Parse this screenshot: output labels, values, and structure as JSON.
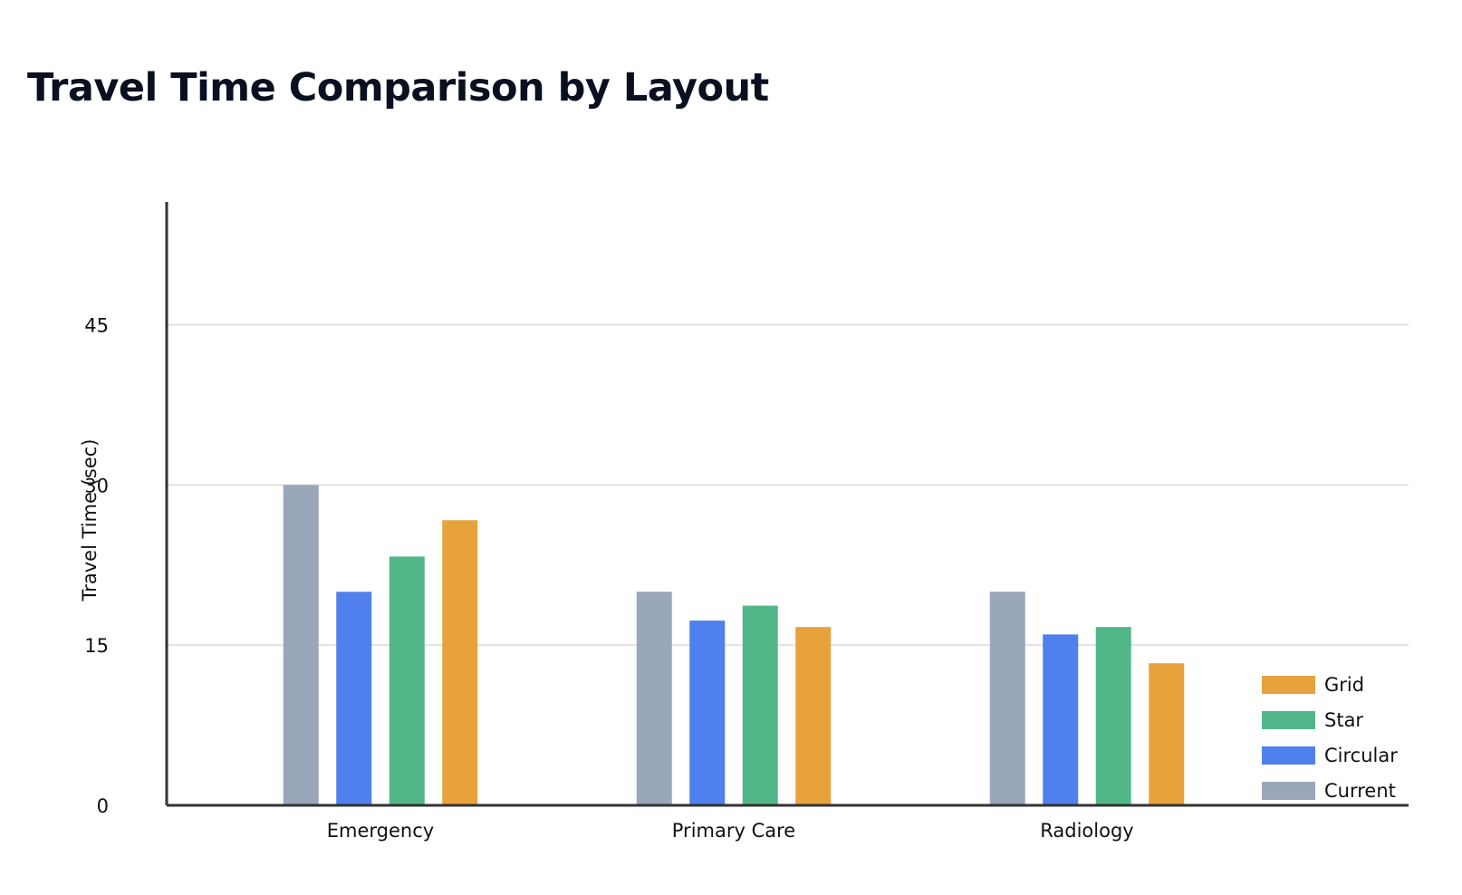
{
  "chart_data": {
    "type": "bar",
    "title": "Travel Time Comparison by Layout",
    "xlabel": "",
    "ylabel": "Travel Time (sec)",
    "categories": [
      "Emergency",
      "Primary Care",
      "Radiology"
    ],
    "series": [
      {
        "name": "Current",
        "values": [
          30,
          20,
          20
        ]
      },
      {
        "name": "Circular",
        "values": [
          20,
          17.3,
          16
        ]
      },
      {
        "name": "Star",
        "values": [
          23.3,
          18.7,
          16.7
        ]
      },
      {
        "name": "Grid",
        "values": [
          26.7,
          16.7,
          13.3
        ]
      }
    ],
    "ylim": [
      0,
      56.5
    ],
    "yticks": [
      0,
      15,
      30,
      45
    ],
    "grid": true,
    "legend": {
      "position": "bottom-right",
      "order": [
        "Grid",
        "Star",
        "Circular",
        "Current"
      ]
    }
  },
  "colors": {
    "Current": "#9aa6ba",
    "Circular": "#4f80ee",
    "Star": "#52b788",
    "Grid": "#e8a23b",
    "grid": "#d9d9d9",
    "axis": "#333333"
  }
}
